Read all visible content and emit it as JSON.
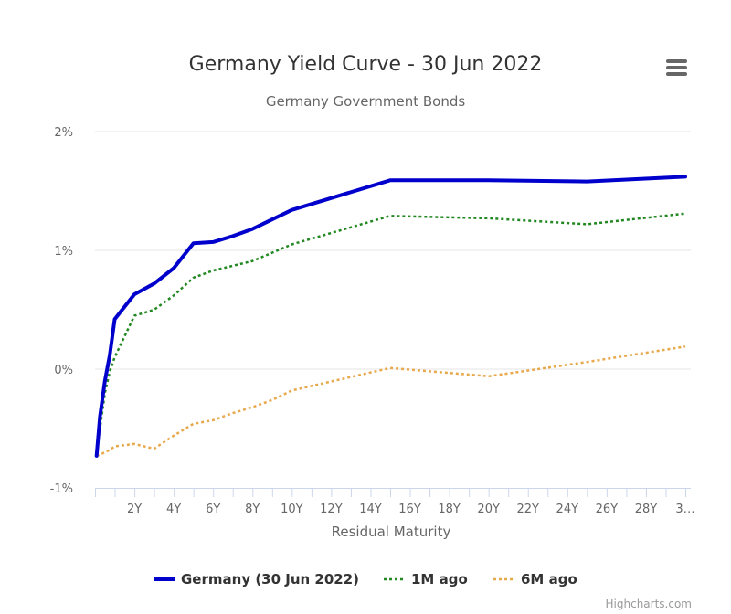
{
  "chart_data": {
    "type": "line",
    "title": "Germany Yield Curve - 30 Jun 2022",
    "subtitle": "Germany Government Bonds",
    "xlabel": "Residual Maturity",
    "ylabel": "",
    "xlim": [
      0,
      30
    ],
    "ylim": [
      -1,
      2
    ],
    "x_ticks": [
      {
        "value": 2,
        "label": "2Y"
      },
      {
        "value": 4,
        "label": "4Y"
      },
      {
        "value": 6,
        "label": "6Y"
      },
      {
        "value": 8,
        "label": "8Y"
      },
      {
        "value": 10,
        "label": "10Y"
      },
      {
        "value": 12,
        "label": "12Y"
      },
      {
        "value": 14,
        "label": "14Y"
      },
      {
        "value": 16,
        "label": "16Y"
      },
      {
        "value": 18,
        "label": "18Y"
      },
      {
        "value": 20,
        "label": "20Y"
      },
      {
        "value": 22,
        "label": "22Y"
      },
      {
        "value": 24,
        "label": "24Y"
      },
      {
        "value": 26,
        "label": "26Y"
      },
      {
        "value": 28,
        "label": "28Y"
      },
      {
        "value": 30,
        "label": "3…"
      }
    ],
    "y_ticks": [
      {
        "value": -1,
        "label": "-1%"
      },
      {
        "value": 0,
        "label": "0%"
      },
      {
        "value": 1,
        "label": "1%"
      },
      {
        "value": 2,
        "label": "2%"
      }
    ],
    "grid": true,
    "legend_position": "bottom",
    "series": [
      {
        "name": "Germany (30 Jun 2022)",
        "color": "#0000cc",
        "dash": "solid",
        "x": [
          0.08,
          0.25,
          0.5,
          0.75,
          1,
          2,
          3,
          4,
          5,
          6,
          7,
          8,
          9,
          10,
          15,
          20,
          25,
          30
        ],
        "y": [
          -0.73,
          -0.4,
          -0.1,
          0.12,
          0.42,
          0.63,
          0.72,
          0.85,
          1.06,
          1.07,
          1.12,
          1.18,
          1.26,
          1.34,
          1.59,
          1.59,
          1.58,
          1.62
        ]
      },
      {
        "name": "1M ago",
        "color": "#228822",
        "dash": "dotted",
        "x": [
          0.08,
          0.25,
          0.5,
          0.75,
          1,
          2,
          3,
          4,
          5,
          6,
          7,
          8,
          9,
          10,
          15,
          20,
          25,
          30
        ],
        "y": [
          -0.7,
          -0.5,
          -0.2,
          -0.02,
          0.1,
          0.45,
          0.5,
          0.62,
          0.77,
          0.83,
          0.87,
          0.91,
          0.98,
          1.05,
          1.29,
          1.27,
          1.22,
          1.31
        ]
      },
      {
        "name": "6M ago",
        "color": "#e8a84c",
        "dash": "dotted",
        "x": [
          0.08,
          0.25,
          0.5,
          0.75,
          1,
          2,
          3,
          4,
          5,
          6,
          7,
          8,
          9,
          10,
          15,
          20,
          25,
          30
        ],
        "y": [
          -0.73,
          -0.72,
          -0.7,
          -0.68,
          -0.65,
          -0.63,
          -0.67,
          -0.56,
          -0.46,
          -0.43,
          -0.37,
          -0.32,
          -0.26,
          -0.18,
          0.01,
          -0.06,
          0.06,
          0.19
        ]
      }
    ]
  },
  "credits": "Highcharts.com",
  "menu_icon": "hamburger-menu-icon"
}
